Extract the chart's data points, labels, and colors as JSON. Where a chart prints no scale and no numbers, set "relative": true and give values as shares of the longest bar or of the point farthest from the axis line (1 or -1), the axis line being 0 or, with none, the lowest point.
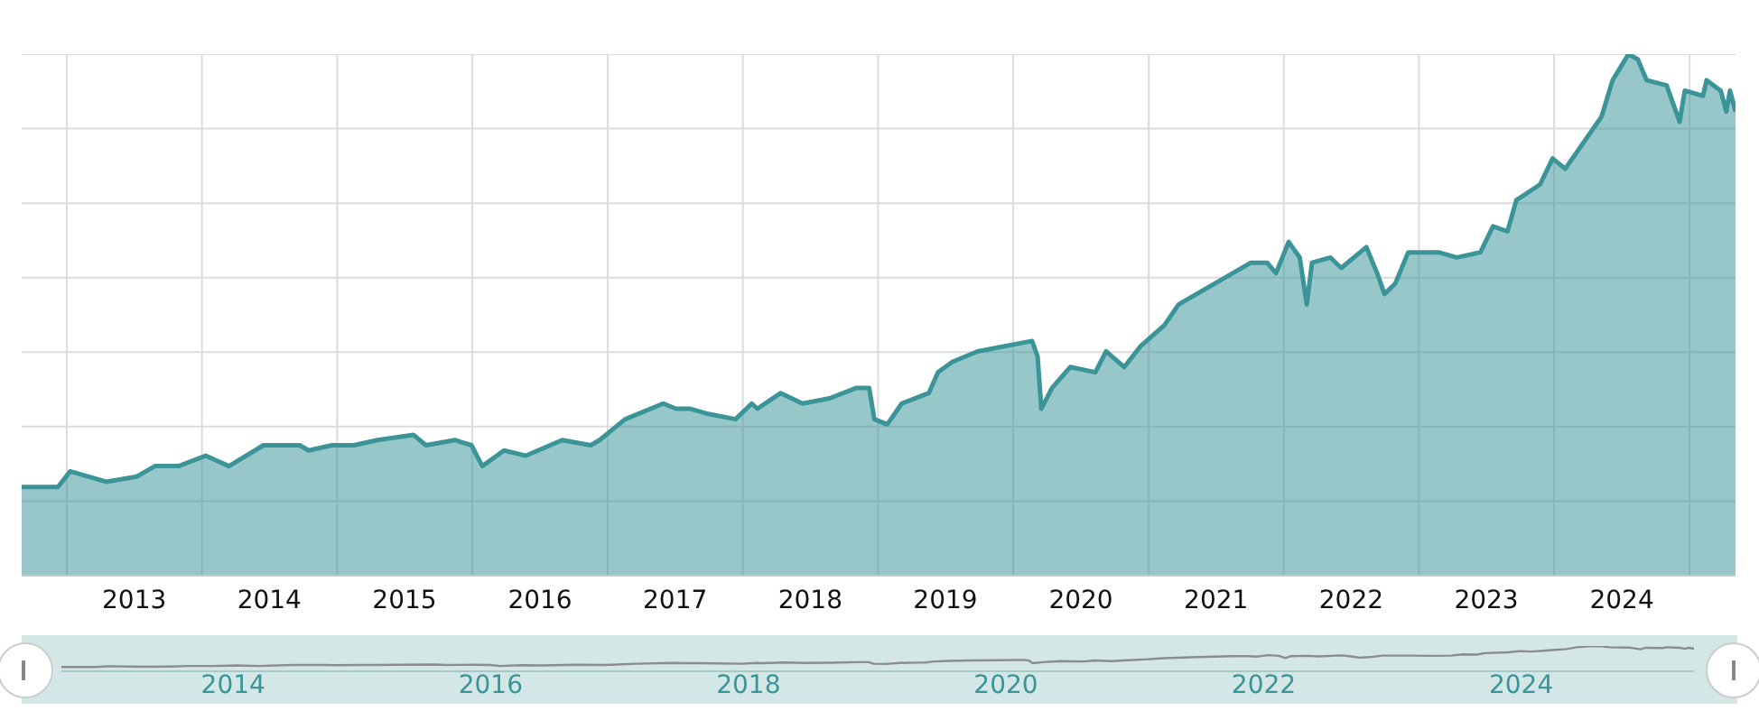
{
  "chart_data": [
    {
      "type": "area",
      "relative": true,
      "grid": true,
      "xlim": [
        "2012-09-01",
        "2025-05-05"
      ],
      "xticks": [
        {
          "value": "2013-01-01",
          "label": null
        },
        {
          "value": "2013-07-02",
          "label": "2013"
        },
        {
          "value": "2014-01-01",
          "label": null
        },
        {
          "value": "2014-07-02",
          "label": "2014"
        },
        {
          "value": "2015-01-01",
          "label": null
        },
        {
          "value": "2015-07-02",
          "label": "2015"
        },
        {
          "value": "2016-01-01",
          "label": null
        },
        {
          "value": "2016-07-02",
          "label": "2016"
        },
        {
          "value": "2017-01-01",
          "label": null
        },
        {
          "value": "2017-07-02",
          "label": "2017"
        },
        {
          "value": "2018-01-01",
          "label": null
        },
        {
          "value": "2018-07-02",
          "label": "2018"
        },
        {
          "value": "2019-01-01",
          "label": null
        },
        {
          "value": "2019-07-02",
          "label": "2019"
        },
        {
          "value": "2020-01-01",
          "label": null
        },
        {
          "value": "2020-07-02",
          "label": "2020"
        },
        {
          "value": "2021-01-01",
          "label": null
        },
        {
          "value": "2021-07-02",
          "label": "2021"
        },
        {
          "value": "2022-01-01",
          "label": null
        },
        {
          "value": "2022-07-02",
          "label": "2022"
        },
        {
          "value": "2023-01-01",
          "label": null
        },
        {
          "value": "2023-07-02",
          "label": "2023"
        },
        {
          "value": "2024-01-01",
          "label": null
        },
        {
          "value": "2024-07-02",
          "label": "2024"
        },
        {
          "value": "2025-01-01",
          "label": null
        }
      ],
      "x": [
        "2012-09-01",
        "2012-12-08",
        "2013-01-10",
        "2013-04-17",
        "2013-07-09",
        "2013-08-27",
        "2013-10-30",
        "2014-01-11",
        "2014-03-15",
        "2014-06-16",
        "2014-09-22",
        "2014-10-16",
        "2014-12-18",
        "2015-02-15",
        "2015-04-20",
        "2015-07-26",
        "2015-08-29",
        "2015-11-15",
        "2015-12-30",
        "2016-01-28",
        "2016-03-27",
        "2016-05-25",
        "2016-08-31",
        "2016-11-16",
        "2016-12-10",
        "2017-02-17",
        "2017-05-31",
        "2017-07-04",
        "2017-08-12",
        "2017-09-30",
        "2017-12-12",
        "2018-01-25",
        "2018-02-09",
        "2018-04-13",
        "2018-06-11",
        "2018-08-23",
        "2018-11-04",
        "2018-12-08",
        "2018-12-22",
        "2019-01-26",
        "2019-03-06",
        "2019-05-18",
        "2019-06-12",
        "2019-07-21",
        "2019-09-27",
        "2019-12-09",
        "2020-02-21",
        "2020-03-07",
        "2020-03-17",
        "2020-04-15",
        "2020-06-03",
        "2020-08-10",
        "2020-09-08",
        "2020-10-27",
        "2020-12-10",
        "2021-02-12",
        "2021-03-23",
        "2021-06-28",
        "2021-10-04",
        "2021-11-17",
        "2021-12-11",
        "2022-01-14",
        "2022-02-13",
        "2022-03-04",
        "2022-03-18",
        "2022-05-07",
        "2022-06-05",
        "2022-08-12",
        "2022-09-10",
        "2022-09-30",
        "2022-10-29",
        "2022-12-03",
        "2023-02-23",
        "2023-04-13",
        "2023-06-16",
        "2023-07-20",
        "2023-08-28",
        "2023-09-21",
        "2023-11-24",
        "2023-12-28",
        "2024-01-31",
        "2024-03-20",
        "2024-05-08",
        "2024-06-07",
        "2024-07-20",
        "2024-08-14",
        "2024-09-07",
        "2024-10-31",
        "2024-12-05",
        "2024-12-19",
        "2025-02-06",
        "2025-02-16",
        "2025-03-26",
        "2025-04-10",
        "2025-04-20",
        "2025-05-05"
      ],
      "series": [
        {
          "color": "#3a9498",
          "values": [
            0.17,
            0.17,
            0.2,
            0.18,
            0.19,
            0.21,
            0.21,
            0.23,
            0.21,
            0.25,
            0.25,
            0.24,
            0.25,
            0.25,
            0.26,
            0.27,
            0.25,
            0.26,
            0.25,
            0.21,
            0.24,
            0.23,
            0.26,
            0.25,
            0.26,
            0.3,
            0.33,
            0.32,
            0.32,
            0.31,
            0.3,
            0.33,
            0.32,
            0.35,
            0.33,
            0.34,
            0.36,
            0.36,
            0.3,
            0.29,
            0.33,
            0.35,
            0.39,
            0.41,
            0.43,
            0.44,
            0.45,
            0.42,
            0.32,
            0.36,
            0.4,
            0.39,
            0.43,
            0.4,
            0.44,
            0.48,
            0.52,
            0.56,
            0.6,
            0.6,
            0.58,
            0.64,
            0.61,
            0.52,
            0.6,
            0.61,
            0.59,
            0.63,
            0.58,
            0.54,
            0.56,
            0.62,
            0.62,
            0.61,
            0.62,
            0.67,
            0.66,
            0.72,
            0.75,
            0.8,
            0.78,
            0.83,
            0.88,
            0.95,
            1,
            0.99,
            0.95,
            0.94,
            0.87,
            0.93,
            0.92,
            0.95,
            0.93,
            0.89,
            0.93,
            0.89
          ]
        }
      ]
    },
    {
      "type": "line",
      "relative": true,
      "xlim": [
        "2012-09-01",
        "2025-05-05"
      ],
      "xticks": [
        {
          "value": "2014-01-01",
          "label": "2014"
        },
        {
          "value": "2016-01-01",
          "label": "2016"
        },
        {
          "value": "2018-01-01",
          "label": "2018"
        },
        {
          "value": "2020-01-01",
          "label": "2020"
        },
        {
          "value": "2022-01-01",
          "label": "2022"
        },
        {
          "value": "2024-01-01",
          "label": "2024"
        }
      ],
      "x": [
        "2012-09-01",
        "2012-12-08",
        "2013-01-10",
        "2013-04-17",
        "2013-07-09",
        "2013-08-27",
        "2013-10-30",
        "2014-01-11",
        "2014-03-15",
        "2014-06-16",
        "2014-09-22",
        "2014-10-16",
        "2014-12-18",
        "2015-02-15",
        "2015-04-20",
        "2015-07-26",
        "2015-08-29",
        "2015-11-15",
        "2015-12-30",
        "2016-01-28",
        "2016-03-27",
        "2016-05-25",
        "2016-08-31",
        "2016-11-16",
        "2016-12-10",
        "2017-02-17",
        "2017-05-31",
        "2017-07-04",
        "2017-08-12",
        "2017-09-30",
        "2017-12-12",
        "2018-01-25",
        "2018-02-09",
        "2018-04-13",
        "2018-06-11",
        "2018-08-23",
        "2018-11-04",
        "2018-12-08",
        "2018-12-22",
        "2019-01-26",
        "2019-03-06",
        "2019-05-18",
        "2019-06-12",
        "2019-07-21",
        "2019-09-27",
        "2019-12-09",
        "2020-02-21",
        "2020-03-07",
        "2020-03-17",
        "2020-04-15",
        "2020-06-03",
        "2020-08-10",
        "2020-09-08",
        "2020-10-27",
        "2020-12-10",
        "2021-02-12",
        "2021-03-23",
        "2021-06-28",
        "2021-10-04",
        "2021-11-17",
        "2021-12-11",
        "2022-01-14",
        "2022-02-13",
        "2022-03-04",
        "2022-03-18",
        "2022-05-07",
        "2022-06-05",
        "2022-08-12",
        "2022-09-10",
        "2022-09-30",
        "2022-10-29",
        "2022-12-03",
        "2023-02-23",
        "2023-04-13",
        "2023-06-16",
        "2023-07-20",
        "2023-08-28",
        "2023-09-21",
        "2023-11-24",
        "2023-12-28",
        "2024-01-31",
        "2024-03-20",
        "2024-05-08",
        "2024-06-07",
        "2024-07-20",
        "2024-08-14",
        "2024-09-07",
        "2024-10-31",
        "2024-12-05",
        "2024-12-19",
        "2025-02-06",
        "2025-02-16",
        "2025-03-26",
        "2025-04-10",
        "2025-04-20",
        "2025-05-05"
      ],
      "series": [
        {
          "color": "#8c8c8c",
          "values": [
            0.17,
            0.17,
            0.2,
            0.18,
            0.19,
            0.21,
            0.21,
            0.23,
            0.21,
            0.25,
            0.25,
            0.24,
            0.25,
            0.25,
            0.26,
            0.27,
            0.25,
            0.26,
            0.25,
            0.21,
            0.24,
            0.23,
            0.26,
            0.25,
            0.26,
            0.3,
            0.33,
            0.32,
            0.32,
            0.31,
            0.3,
            0.33,
            0.32,
            0.35,
            0.33,
            0.34,
            0.36,
            0.36,
            0.3,
            0.29,
            0.33,
            0.35,
            0.39,
            0.41,
            0.43,
            0.44,
            0.45,
            0.42,
            0.32,
            0.36,
            0.4,
            0.39,
            0.43,
            0.4,
            0.44,
            0.48,
            0.52,
            0.56,
            0.6,
            0.6,
            0.58,
            0.64,
            0.61,
            0.52,
            0.6,
            0.61,
            0.59,
            0.63,
            0.58,
            0.54,
            0.56,
            0.62,
            0.62,
            0.61,
            0.62,
            0.67,
            0.66,
            0.72,
            0.75,
            0.8,
            0.78,
            0.83,
            0.88,
            0.95,
            1,
            0.99,
            0.95,
            0.94,
            0.87,
            0.93,
            0.92,
            0.95,
            0.93,
            0.89,
            0.93,
            0.89
          ]
        }
      ]
    }
  ]
}
